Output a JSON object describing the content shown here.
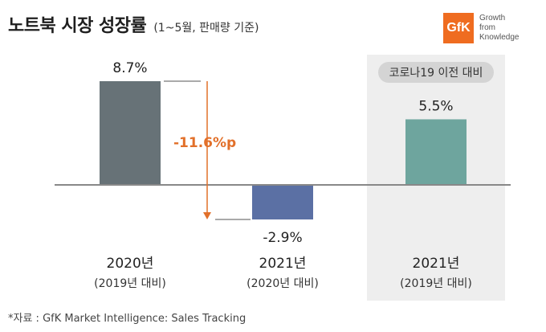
{
  "header": {
    "title": "노트북 시장 성장률",
    "subtitle": "(1~5월, 판매량 기준)"
  },
  "logo": {
    "mark": "GfK",
    "lines": [
      "Growth",
      "from",
      "Knowledge"
    ],
    "color": "#ef6c20"
  },
  "chart_data": {
    "type": "bar",
    "categories": [
      {
        "label": "2020년",
        "sub": "(2019년 대비)"
      },
      {
        "label": "2021년",
        "sub": "(2020년 대비)"
      },
      {
        "label": "2021년",
        "sub": "(2019년 대비)"
      }
    ],
    "values": [
      8.7,
      -2.9,
      5.5
    ],
    "value_labels": [
      "8.7%",
      "-2.9%",
      "5.5%"
    ],
    "colors": [
      "#677277",
      "#5b70a4",
      "#6ea59e"
    ],
    "annotation": {
      "text": "-11.6%p",
      "from": 8.7,
      "to": -2.9,
      "color": "#e2702a"
    },
    "highlight": {
      "category_index": 2,
      "label": "코로나19 이전 대비",
      "color": "#eeeeee"
    },
    "ylim": [
      -2.9,
      8.7
    ],
    "grid": false
  },
  "footnote": "*자료 : GfK Market Intelligence: Sales Tracking"
}
